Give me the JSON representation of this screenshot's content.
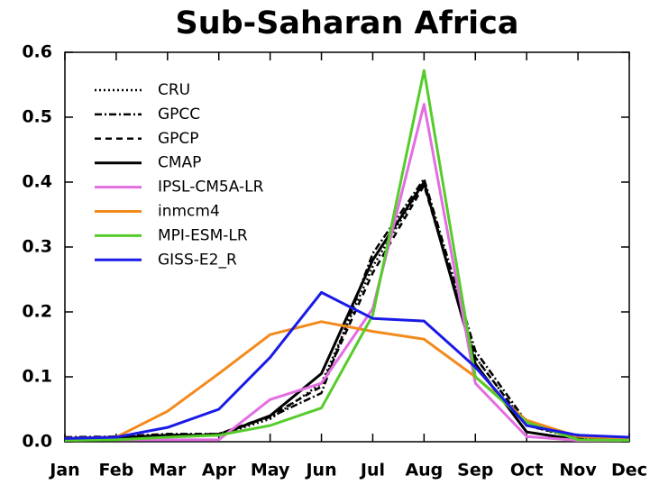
{
  "chart_data": {
    "type": "line",
    "title": "Sub-Saharan Africa",
    "categories": [
      "Jan",
      "Feb",
      "Mar",
      "Apr",
      "May",
      "Jun",
      "Jul",
      "Aug",
      "Sep",
      "Oct",
      "Nov",
      "Dec"
    ],
    "ylim": [
      0,
      0.6
    ],
    "yticks": [
      {
        "value": 0,
        "label": "0.0"
      },
      0.1,
      0.2,
      0.3,
      0.4,
      0.5,
      0.6
    ],
    "legend": "upper left",
    "series": [
      {
        "name": "CRU",
        "color": "#000000",
        "dash": "dotted",
        "values": [
          0.005,
          0.007,
          0.01,
          0.01,
          0.035,
          0.09,
          0.27,
          0.4,
          0.13,
          0.025,
          0.005,
          0.003
        ]
      },
      {
        "name": "GPCC",
        "color": "#000000",
        "dash": "dashdot",
        "values": [
          0.007,
          0.008,
          0.012,
          0.012,
          0.038,
          0.075,
          0.29,
          0.405,
          0.14,
          0.03,
          0.006,
          0.004
        ]
      },
      {
        "name": "GPCP",
        "color": "#000000",
        "dash": "dashed",
        "values": [
          0.006,
          0.007,
          0.01,
          0.012,
          0.04,
          0.085,
          0.26,
          0.395,
          0.13,
          0.025,
          0.006,
          0.004
        ]
      },
      {
        "name": "CMAP",
        "color": "#000000",
        "dash": "solid",
        "values": [
          0.005,
          0.006,
          0.01,
          0.01,
          0.04,
          0.105,
          0.28,
          0.4,
          0.12,
          0.015,
          0.003,
          0.002
        ]
      },
      {
        "name": "IPSL-CM5A-LR",
        "color": "#e26ee2",
        "dash": "solid",
        "values": [
          0.003,
          0.003,
          0.003,
          0.003,
          0.065,
          0.09,
          0.205,
          0.52,
          0.09,
          0.008,
          0.002,
          0.002
        ]
      },
      {
        "name": "inmcm4",
        "color": "#f28a1c",
        "dash": "solid",
        "values": [
          0.005,
          0.007,
          0.047,
          0.105,
          0.165,
          0.185,
          0.17,
          0.158,
          0.1,
          0.033,
          0.008,
          0.005
        ]
      },
      {
        "name": "MPI-ESM-LR",
        "color": "#55cc2a",
        "dash": "solid",
        "values": [
          0.002,
          0.003,
          0.007,
          0.01,
          0.025,
          0.052,
          0.195,
          0.572,
          0.1,
          0.03,
          0.003,
          0.002
        ]
      },
      {
        "name": "GISS-E2_R",
        "color": "#1a1ae6",
        "dash": "solid",
        "values": [
          0.005,
          0.007,
          0.022,
          0.05,
          0.13,
          0.23,
          0.19,
          0.186,
          0.115,
          0.025,
          0.01,
          0.007
        ]
      }
    ]
  }
}
